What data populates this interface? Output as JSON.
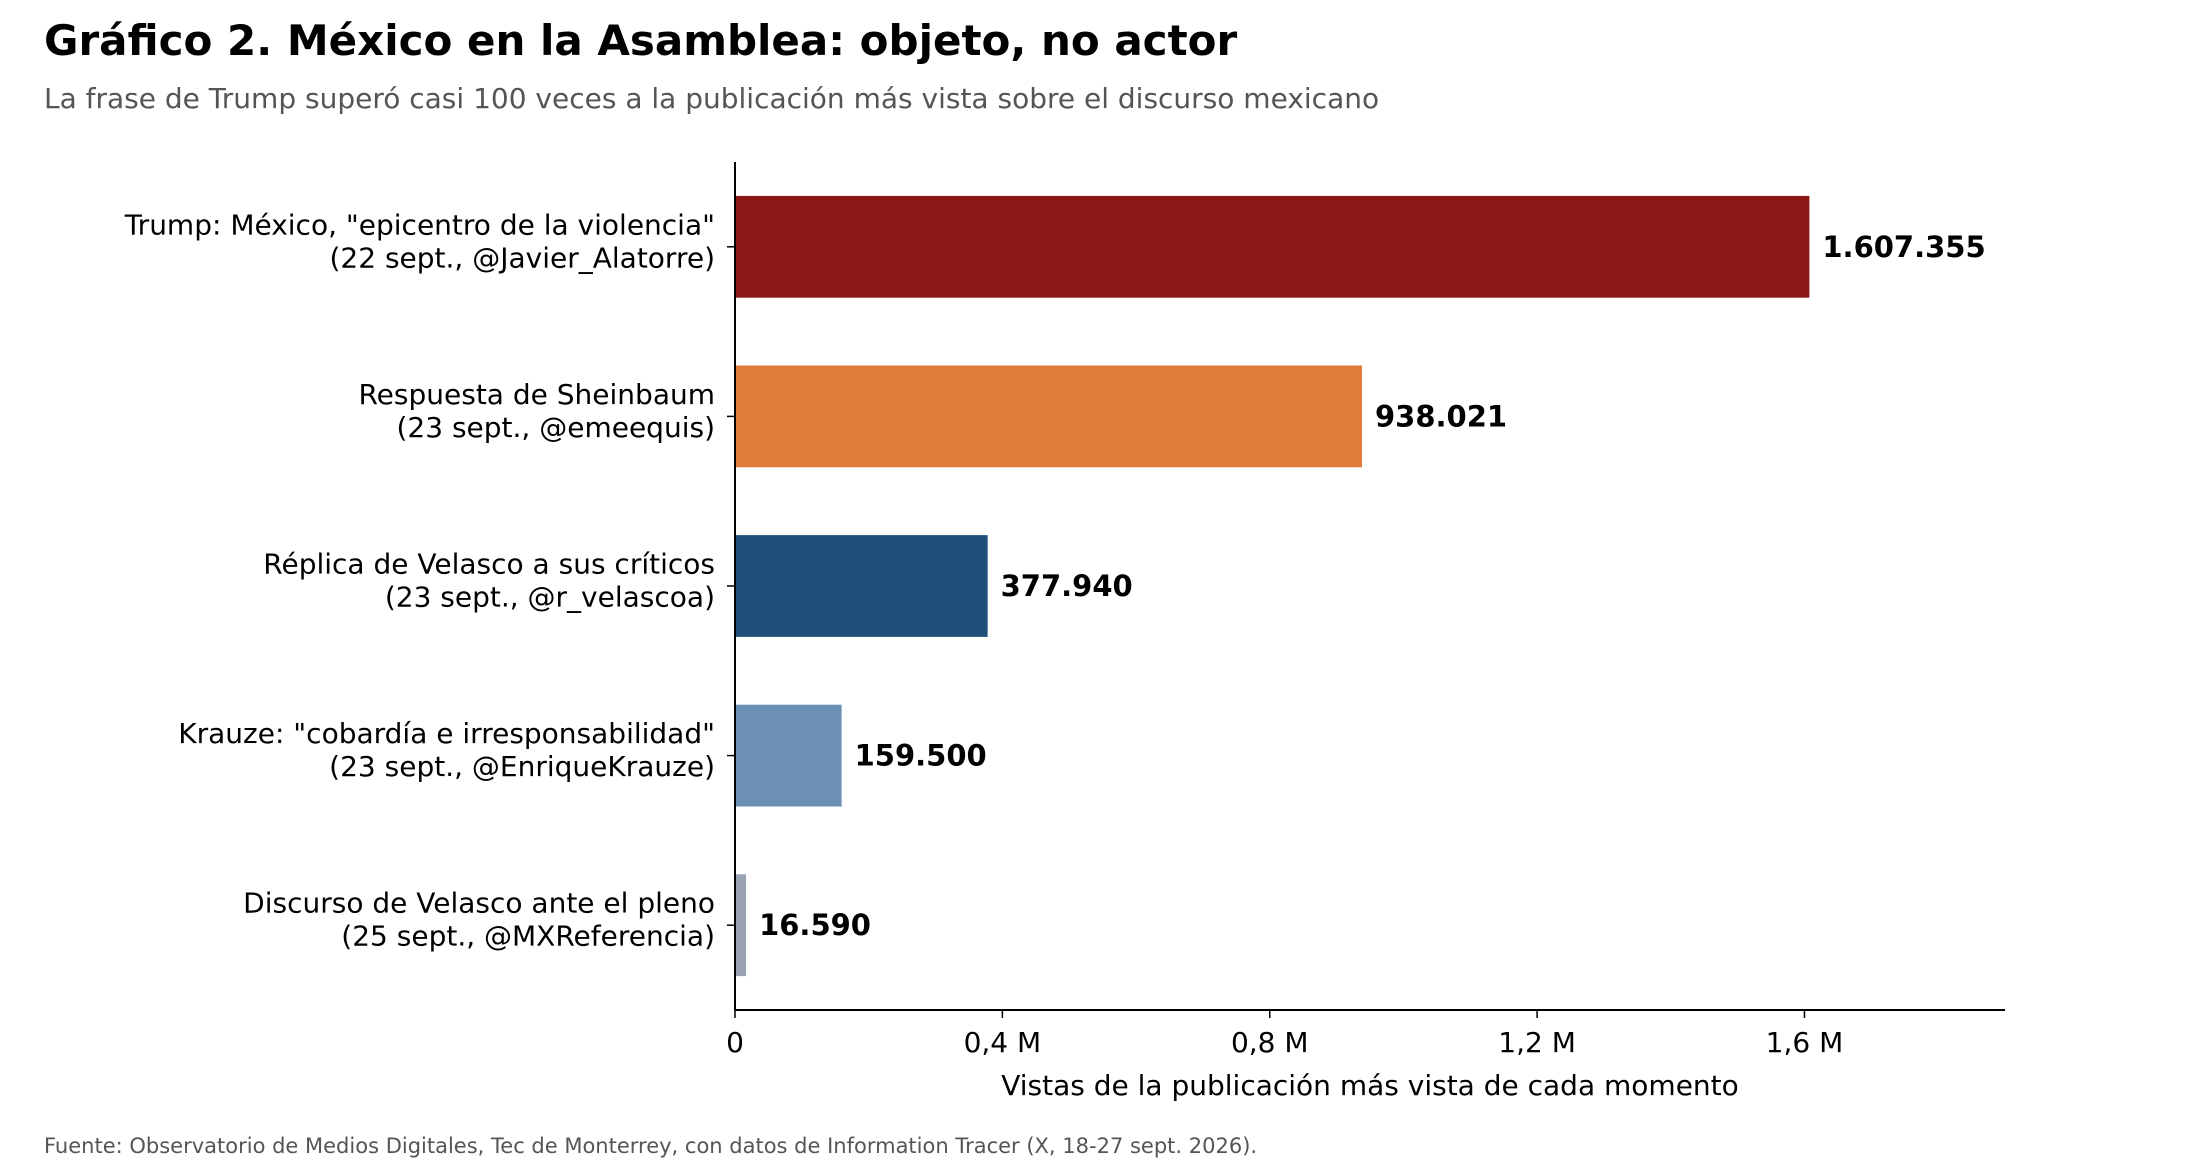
{
  "chart_data": {
    "type": "bar",
    "orientation": "horizontal",
    "title": "Gráfico 2. México en la Asamblea: objeto, no actor",
    "subtitle": "La frase de Trump superó casi 100 veces a la publicación más vista sobre el discurso mexicano",
    "categories": [
      [
        "Trump: México, \"epicentro de la violencia\"",
        "(22 sept., @Javier_Alatorre)"
      ],
      [
        "Respuesta de Sheinbaum",
        "(23 sept., @emeequis)"
      ],
      [
        "Réplica de Velasco a sus críticos",
        "(23 sept., @r_velascoa)"
      ],
      [
        "Krauze: \"cobardía e irresponsabilidad\"",
        "(23 sept., @EnriqueKrauze)"
      ],
      [
        "Discurso de Velasco ante el pleno",
        "(25 sept., @MXReferencia)"
      ]
    ],
    "values": [
      1607355,
      938021,
      377940,
      159500,
      16590
    ],
    "value_labels": [
      "1.607.355",
      "938.021",
      "377.940",
      "159.500",
      "16.590"
    ],
    "colors": [
      "#8b1a17",
      "#e07b39",
      "#1f4e79",
      "#6b8fb5",
      "#99a3b3"
    ],
    "xlabel": "Vistas de la publicación más vista de cada momento",
    "ylabel": "",
    "xlim": [
      0,
      1900000
    ],
    "xticks": [
      0,
      400000,
      800000,
      1200000,
      1600000
    ],
    "xtick_labels": [
      "0",
      "0,4 M",
      "0,8 M",
      "1,2 M",
      "1,6 M"
    ],
    "grid": false,
    "source": "Fuente: Observatorio de Medios Digitales, Tec de Monterrey, con datos de Information Tracer (X, 18-27 sept. 2026)."
  }
}
